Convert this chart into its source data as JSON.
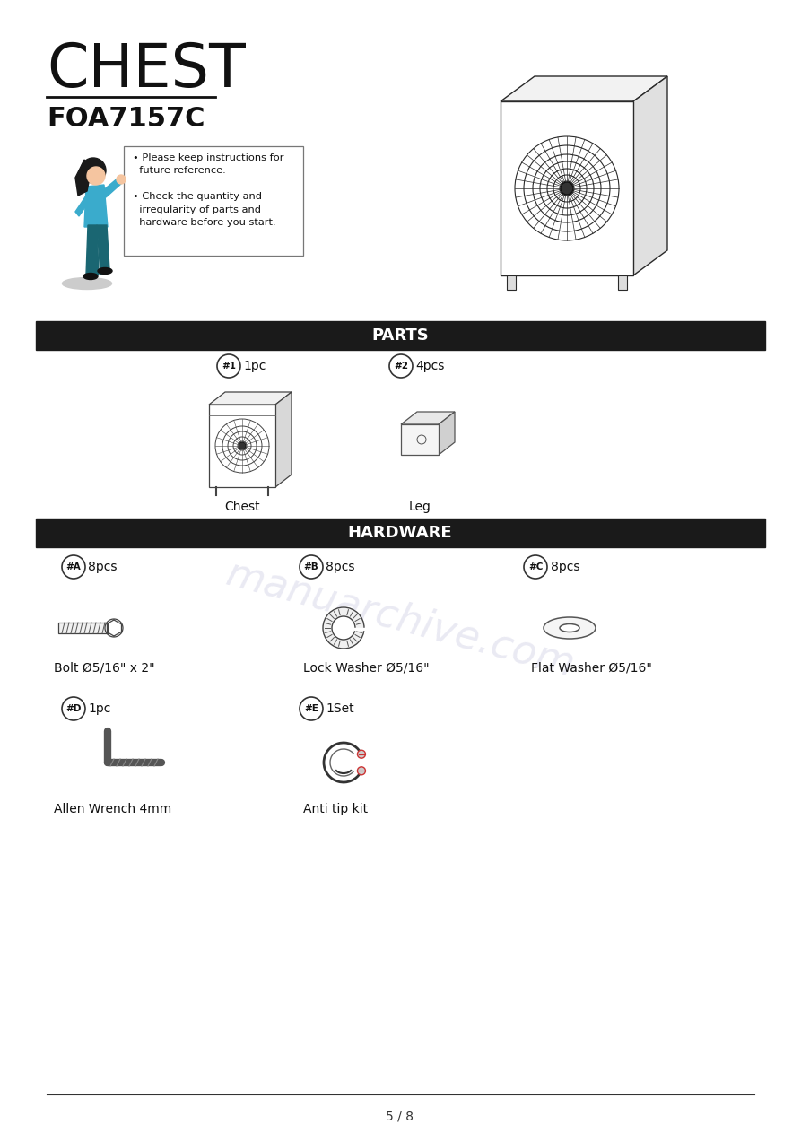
{
  "title": "CHEST",
  "subtitle": "FOA7157C",
  "bg_color": "#ffffff",
  "parts_bar_color": "#1a1a1a",
  "parts_bar_text": "PARTS",
  "hardware_bar_color": "#1a1a1a",
  "hardware_bar_text": "HARDWARE",
  "page_text": "5 / 8",
  "watermark_color": "#8888bb",
  "watermark_alpha": 0.18,
  "title_fontsize": 48,
  "subtitle_fontsize": 22,
  "bar_fontsize": 13,
  "label_fontsize": 10,
  "item_fontsize": 10,
  "parts": [
    {
      "label": "#1",
      "qty": "1pc",
      "name": "Chest"
    },
    {
      "label": "#2",
      "qty": "4pcs",
      "name": "Leg"
    }
  ],
  "hardware": [
    {
      "label": "#A",
      "qty": "8pcs",
      "name": "Bolt Ø5/16\" x 2\""
    },
    {
      "label": "#B",
      "qty": "8pcs",
      "name": "Lock Washer Ø5/16\""
    },
    {
      "label": "#C",
      "qty": "8pcs",
      "name": "Flat Washer Ø5/16\""
    },
    {
      "label": "#D",
      "qty": "1pc",
      "name": "Allen Wrench 4mm"
    },
    {
      "label": "#E",
      "qty": "1Set",
      "name": "Anti tip kit"
    }
  ],
  "instr_lines": [
    "• Please keep instructions for",
    "  future reference.",
    "",
    "• Check the quantity and",
    "  irregularity of parts and",
    "  hardware before you start."
  ]
}
